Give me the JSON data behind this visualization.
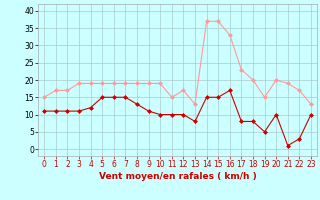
{
  "x": [
    0,
    1,
    2,
    3,
    4,
    5,
    6,
    7,
    8,
    9,
    10,
    11,
    12,
    13,
    14,
    15,
    16,
    17,
    18,
    19,
    20,
    21,
    22,
    23
  ],
  "vent_moyen": [
    11,
    11,
    11,
    11,
    12,
    15,
    15,
    15,
    13,
    11,
    10,
    10,
    10,
    8,
    15,
    15,
    17,
    8,
    8,
    5,
    10,
    1,
    3,
    10
  ],
  "vent_rafales": [
    15,
    17,
    17,
    19,
    19,
    19,
    19,
    19,
    19,
    19,
    19,
    15,
    17,
    13,
    37,
    37,
    33,
    23,
    20,
    15,
    20,
    19,
    17,
    13
  ],
  "color_moyen": "#cc0000",
  "color_rafales": "#ff9999",
  "bg_color": "#ccffff",
  "grid_color": "#aacccc",
  "xlabel": "Vent moyen/en rafales ( km/h )",
  "xlabel_color": "#cc0000",
  "ylim": [
    -2,
    42
  ],
  "yticks": [
    0,
    5,
    10,
    15,
    20,
    25,
    30,
    35,
    40
  ],
  "marker": "D",
  "markersize": 2.0,
  "linewidth": 0.8,
  "tick_fontsize": 5.5,
  "label_fontsize": 6.5
}
